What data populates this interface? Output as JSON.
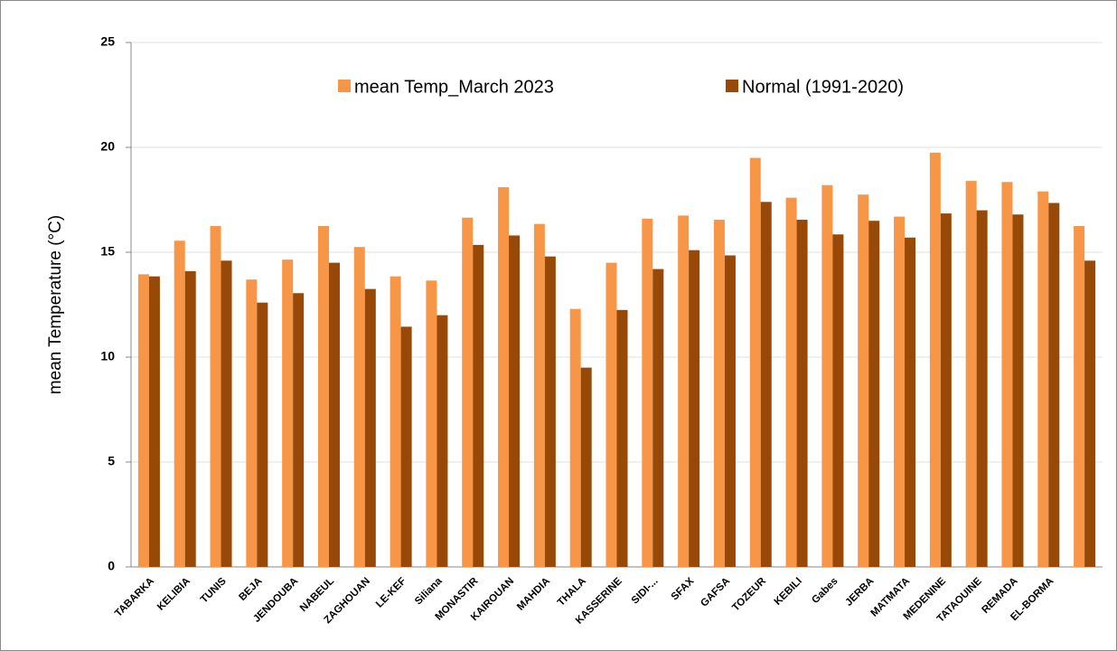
{
  "chart_data": {
    "type": "bar",
    "ylabel": "mean Temperature (°C)",
    "categories": [
      "TABARKA",
      "KELIBIA",
      "TUNIS",
      "BEJA",
      "JENDOUBA",
      "NABEUL",
      "ZAGHOUAN",
      "LE-KEF",
      "Siliana",
      "MONASTIR",
      "KAIROUAN",
      "MAHDIA",
      "THALA",
      "KASSERINE",
      "SIDI-...",
      "SFAX",
      "GAFSA",
      "TOZEUR",
      "KEBILI",
      "Gabes",
      "JERBA",
      "MATMATA",
      "MEDENINE",
      "TATAOUINE",
      "REMADA",
      "EL-BORMA",
      null
    ],
    "series": [
      {
        "name": "mean Temp_March 2023",
        "color": "#f79646",
        "values": [
          13.95,
          15.55,
          16.25,
          13.7,
          14.65,
          16.25,
          15.25,
          13.85,
          13.65,
          16.65,
          18.1,
          16.35,
          12.3,
          14.5,
          16.6,
          16.75,
          16.55,
          19.5,
          17.6,
          18.2,
          17.75,
          16.7,
          19.75,
          18.4,
          18.35,
          17.9,
          16.25
        ]
      },
      {
        "name": "Normal (1991-2020)",
        "color": "#984807",
        "values": [
          13.85,
          14.1,
          14.6,
          12.6,
          13.05,
          14.5,
          13.25,
          11.45,
          12.0,
          15.35,
          15.8,
          14.8,
          9.5,
          12.25,
          14.2,
          15.1,
          14.85,
          17.4,
          16.55,
          15.85,
          16.5,
          15.7,
          16.85,
          17.0,
          16.8,
          17.35,
          14.6
        ]
      }
    ],
    "ylim": [
      0,
      25
    ],
    "yticks": [
      0,
      5,
      10,
      15,
      20,
      25
    ],
    "grid": true
  }
}
